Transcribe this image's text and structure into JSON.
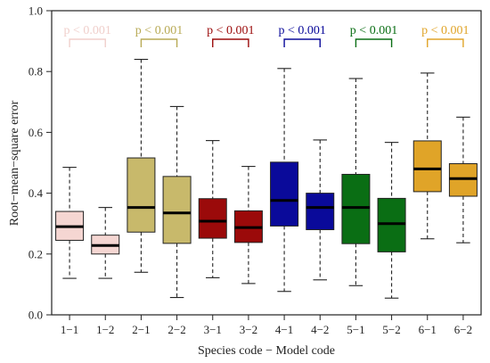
{
  "chart_data": {
    "type": "boxplot",
    "title": "",
    "xlabel": "Species code − Model code",
    "ylabel": "Root−mean−square error",
    "ylim": [
      0.0,
      1.0
    ],
    "yticks": [
      0.0,
      0.2,
      0.4,
      0.6,
      0.8,
      1.0
    ],
    "ytick_labels": [
      "0.0",
      "0.2",
      "0.4",
      "0.6",
      "0.8",
      "1.0"
    ],
    "grid": false,
    "categories": [
      "1−1",
      "1−2",
      "2−1",
      "2−2",
      "3−1",
      "3−2",
      "4−1",
      "4−2",
      "5−1",
      "5−2",
      "6−1",
      "6−2"
    ],
    "boxes": [
      {
        "min": 0.12,
        "q1": 0.245,
        "median": 0.29,
        "q3": 0.34,
        "max": 0.485,
        "color": "#f5d6d2"
      },
      {
        "min": 0.12,
        "q1": 0.2,
        "median": 0.228,
        "q3": 0.262,
        "max": 0.353,
        "color": "#f5d6d2"
      },
      {
        "min": 0.14,
        "q1": 0.272,
        "median": 0.353,
        "q3": 0.516,
        "max": 0.84,
        "color": "#c8b96b"
      },
      {
        "min": 0.057,
        "q1": 0.235,
        "median": 0.335,
        "q3": 0.455,
        "max": 0.685,
        "color": "#c8b96b"
      },
      {
        "min": 0.122,
        "q1": 0.252,
        "median": 0.308,
        "q3": 0.382,
        "max": 0.573,
        "color": "#9b0a0a"
      },
      {
        "min": 0.103,
        "q1": 0.238,
        "median": 0.287,
        "q3": 0.342,
        "max": 0.488,
        "color": "#9b0a0a"
      },
      {
        "min": 0.077,
        "q1": 0.292,
        "median": 0.376,
        "q3": 0.502,
        "max": 0.81,
        "color": "#0a0a9a"
      },
      {
        "min": 0.115,
        "q1": 0.28,
        "median": 0.353,
        "q3": 0.4,
        "max": 0.575,
        "color": "#0a0a9a"
      },
      {
        "min": 0.096,
        "q1": 0.234,
        "median": 0.353,
        "q3": 0.462,
        "max": 0.777,
        "color": "#0a6e14"
      },
      {
        "min": 0.055,
        "q1": 0.207,
        "median": 0.3,
        "q3": 0.383,
        "max": 0.567,
        "color": "#0a6e14"
      },
      {
        "min": 0.25,
        "q1": 0.405,
        "median": 0.48,
        "q3": 0.572,
        "max": 0.795,
        "color": "#e0a428"
      },
      {
        "min": 0.237,
        "q1": 0.39,
        "median": 0.448,
        "q3": 0.497,
        "max": 0.65,
        "color": "#e0a428"
      }
    ],
    "annotations": [
      {
        "label": "p < 0.001",
        "pair": [
          0,
          1
        ],
        "color": "#f0cfcb"
      },
      {
        "label": "p < 0.001",
        "pair": [
          2,
          3
        ],
        "color": "#b8aa55"
      },
      {
        "label": "p < 0.001",
        "pair": [
          4,
          5
        ],
        "color": "#9b0a0a"
      },
      {
        "label": "p < 0.001",
        "pair": [
          6,
          7
        ],
        "color": "#0a0a9a"
      },
      {
        "label": "p < 0.001",
        "pair": [
          8,
          9
        ],
        "color": "#0a6e14"
      },
      {
        "label": "p < 0.001",
        "pair": [
          10,
          11
        ],
        "color": "#e0a428"
      }
    ]
  }
}
